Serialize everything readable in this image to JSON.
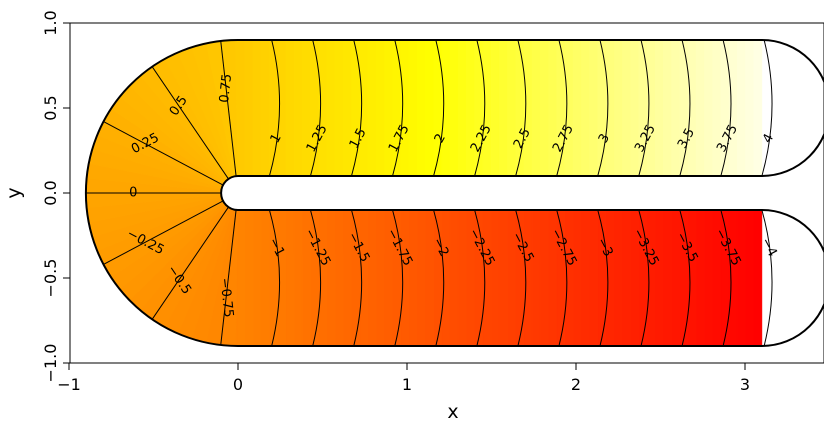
{
  "chart_data": {
    "type": "contour",
    "title": "",
    "xlabel": "x",
    "ylabel": "y",
    "xlim": [
      -1,
      3.45
    ],
    "ylim": [
      -1,
      1
    ],
    "x_ticks": [
      "−1",
      "0",
      "1",
      "2",
      "3"
    ],
    "y_ticks": [
      "−1.0",
      "−0.5",
      "0.0",
      "0.5",
      "1.0"
    ],
    "x_tick_values": [
      -1,
      0,
      1,
      2,
      3
    ],
    "y_tick_values": [
      -1,
      -0.5,
      0,
      0.5,
      1
    ],
    "domain": "U-shaped channel: outer radius 0.9, inner radius 0.1, arms extending to x = 3.1",
    "function": "value equals signed arc length along the channel centre line; 0 at the left apex, positive along the upper arm, negative along the lower arm",
    "contour_levels": [
      -4,
      -3.75,
      -3.5,
      -3.25,
      -3,
      -2.75,
      -2.5,
      -2.25,
      -2,
      -1.75,
      -1.5,
      -1.25,
      -1,
      -0.75,
      -0.5,
      -0.25,
      0,
      0.25,
      0.5,
      0.75,
      1,
      1.25,
      1.5,
      1.75,
      2,
      2.25,
      2.5,
      2.75,
      3,
      3.25,
      3.5,
      3.75,
      4
    ],
    "contour_labels": [
      "−4",
      "−3.75",
      "−3.5",
      "−3.25",
      "−3",
      "−2.75",
      "−2.5",
      "−2.25",
      "−2",
      "−1.75",
      "−1.5",
      "−1.25",
      "−1",
      "−0.75",
      "−0.5",
      "−0.25",
      "0",
      "0.25",
      "0.5",
      "0.75",
      "1",
      "1.25",
      "1.5",
      "1.75",
      "2",
      "2.25",
      "2.5",
      "2.75",
      "3",
      "3.25",
      "3.5",
      "3.75",
      "4"
    ],
    "colors": {
      "low": "#ff0000",
      "mid": "#ffa500",
      "high_yellow": "#ffff00",
      "high": "#ffffe6",
      "outline": "#000000",
      "contour_line": "#000000"
    }
  }
}
